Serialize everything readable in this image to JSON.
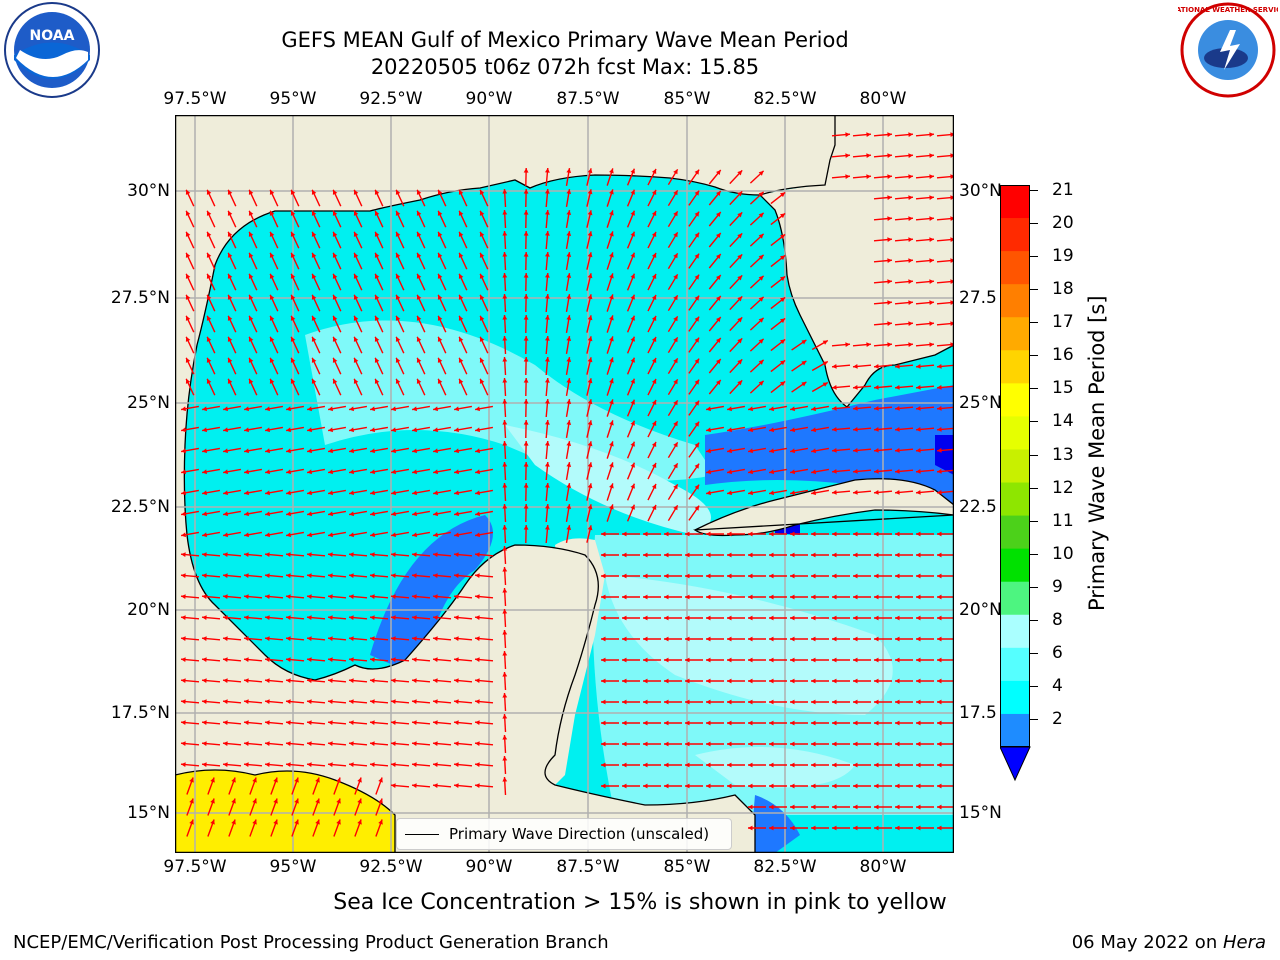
{
  "title_line1": "GEFS MEAN Gulf of Mexico Primary Wave Mean Period",
  "title_line2": "20220505 t06z 072h fcst   Max: 15.85",
  "lon_ticks": [
    "97.5°W",
    "95°W",
    "92.5°W",
    "90°W",
    "87.5°W",
    "85°W",
    "82.5°W",
    "80°W"
  ],
  "lat_ticks_left": [
    "30°N",
    "27.5°N",
    "25°N",
    "22.5°N",
    "20°N",
    "17.5°N",
    "15°N"
  ],
  "lat_ticks_right": [
    "30°N",
    "27.5",
    "25°N",
    "22.5",
    "20°N",
    "17.5",
    "15°N"
  ],
  "colorbar": {
    "label": "Primary Wave Mean Period [s]",
    "ticks": [
      "21",
      "20",
      "19",
      "18",
      "17",
      "16",
      "15",
      "14",
      "13",
      "12",
      "11",
      "10",
      "9",
      "8",
      "6",
      "4",
      "2"
    ],
    "colors": [
      "#ff0000",
      "#ff2a00",
      "#ff5500",
      "#ff7f00",
      "#ffaa00",
      "#ffd400",
      "#ffff00",
      "#e6ff00",
      "#c8f000",
      "#8ee600",
      "#4cd11a",
      "#00e100",
      "#4df580",
      "#aaffff",
      "#55ffff",
      "#00ffff",
      "#1e8cff"
    ],
    "extend_color": "#0000ff"
  },
  "legend_text": "Primary Wave Direction (unscaled)",
  "colors": {
    "land": "#efedda",
    "ocean_base": "#00f0f0",
    "ocean_light": "#7ff9f9",
    "ocean_pale": "#b3fbfb",
    "ocean_blue": "#1e78ff",
    "ocean_deep": "#0000ee",
    "ice_yellow": "#ffee00",
    "arrow": "#ff0000",
    "grid": "#b0b0b0"
  },
  "sea_ice_note": "Sea Ice Concentration > 15% is shown in pink to yellow",
  "footer_left": "NCEP/EMC/Verification Post Processing Product Generation Branch",
  "footer_right_prefix": "06 May 2022 on ",
  "footer_right_machine": "Hera",
  "logos": {
    "left": "NOAA",
    "right": "NATIONAL WEATHER SERVICE"
  }
}
